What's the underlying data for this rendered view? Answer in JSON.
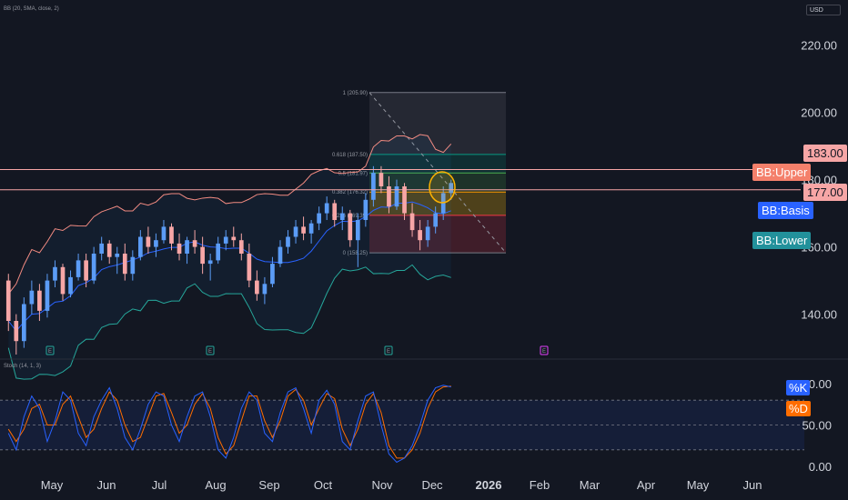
{
  "header": {
    "indicator_label": "BB (20, SMA, close, 2)",
    "currency": "USD"
  },
  "price_axis": {
    "ticks": [
      "220.00",
      "200.00",
      "180.00",
      "160.00",
      "140.00"
    ]
  },
  "price_labels": {
    "upper_line": "183.00",
    "lower_line": "177.00"
  },
  "bb_labels": {
    "upper": "BB:Upper",
    "basis": "BB:Basis",
    "lower": "BB:Lower"
  },
  "fib_labels": [
    "1 (205.90)",
    "0.618 (187.50)",
    "0.5 (181.97)",
    "0.382 (176.32)",
    "0.236 (169.39)",
    "0 (158.25)"
  ],
  "stoch": {
    "label": "Stoch (14, 1, 3)",
    "ticks": [
      "100.00",
      "50.00",
      "0.00"
    ],
    "k_label": "%K",
    "d_label": "%D"
  },
  "time_axis": [
    "May",
    "Jun",
    "Jul",
    "Aug",
    "Sep",
    "Oct",
    "Nov",
    "Dec",
    "2026",
    "Feb",
    "Mar",
    "Apr",
    "May",
    "Jun"
  ],
  "event_markers": [
    "E",
    "E",
    "E",
    "E"
  ],
  "colors": {
    "background": "#131722",
    "up": "#5b9cf6",
    "down": "#f7a6a6",
    "bb_upper": "#f28b82",
    "bb_basis": "#2962ff",
    "bb_lower": "#26a69a",
    "k": "#2962ff",
    "d": "#ff6d00",
    "hline": "#f7a6a6"
  },
  "chart_data": {
    "type": "candlestick",
    "price_range": [
      128,
      228
    ],
    "ohlc": [
      [
        150,
        152,
        135,
        138
      ],
      [
        138,
        140,
        128,
        132
      ],
      [
        132,
        145,
        130,
        143
      ],
      [
        143,
        150,
        140,
        147
      ],
      [
        147,
        149,
        138,
        141
      ],
      [
        141,
        152,
        139,
        150
      ],
      [
        150,
        156,
        148,
        154
      ],
      [
        154,
        155,
        144,
        146
      ],
      [
        146,
        153,
        145,
        151
      ],
      [
        151,
        158,
        150,
        156
      ],
      [
        156,
        158,
        148,
        150
      ],
      [
        150,
        160,
        149,
        158
      ],
      [
        158,
        163,
        156,
        161
      ],
      [
        161,
        162,
        155,
        157
      ],
      [
        157,
        160,
        152,
        158
      ],
      [
        158,
        161,
        150,
        152
      ],
      [
        152,
        159,
        150,
        157
      ],
      [
        157,
        165,
        156,
        163
      ],
      [
        163,
        166,
        158,
        160
      ],
      [
        160,
        164,
        157,
        162
      ],
      [
        162,
        168,
        161,
        166
      ],
      [
        166,
        167,
        159,
        161
      ],
      [
        161,
        164,
        156,
        158
      ],
      [
        158,
        163,
        155,
        162
      ],
      [
        162,
        165,
        158,
        160
      ],
      [
        160,
        163,
        152,
        155
      ],
      [
        155,
        158,
        150,
        156
      ],
      [
        156,
        163,
        155,
        161
      ],
      [
        161,
        165,
        159,
        163
      ],
      [
        163,
        166,
        160,
        162
      ],
      [
        162,
        164,
        156,
        158
      ],
      [
        158,
        161,
        148,
        150
      ],
      [
        150,
        153,
        144,
        146
      ],
      [
        146,
        151,
        143,
        149
      ],
      [
        149,
        157,
        148,
        155
      ],
      [
        155,
        162,
        154,
        160
      ],
      [
        160,
        165,
        158,
        163
      ],
      [
        163,
        168,
        161,
        166
      ],
      [
        166,
        169,
        162,
        164
      ],
      [
        164,
        168,
        161,
        167
      ],
      [
        167,
        172,
        165,
        170
      ],
      [
        170,
        175,
        168,
        173
      ],
      [
        173,
        174,
        166,
        168
      ],
      [
        168,
        172,
        165,
        170
      ],
      [
        170,
        171,
        160,
        162
      ],
      [
        162,
        170,
        154,
        168
      ],
      [
        168,
        176,
        166,
        174
      ],
      [
        174,
        184,
        172,
        182
      ],
      [
        182,
        184,
        176,
        178
      ],
      [
        178,
        181,
        170,
        172
      ],
      [
        172,
        180,
        171,
        178
      ],
      [
        178,
        179,
        168,
        170
      ],
      [
        170,
        173,
        163,
        165
      ],
      [
        165,
        168,
        159,
        162
      ],
      [
        162,
        168,
        160,
        166
      ],
      [
        166,
        172,
        164,
        170
      ],
      [
        170,
        178,
        168,
        176
      ],
      [
        176,
        180,
        174,
        179
      ]
    ],
    "bollinger": {
      "upper": [],
      "basis": [],
      "lower": []
    },
    "horizontal_lines": [
      183,
      177
    ],
    "fibonacci": {
      "levels": [
        1,
        0.618,
        0.5,
        0.382,
        0.236,
        0
      ],
      "prices": [
        205.9,
        187.5,
        181.97,
        176.32,
        169.39,
        158.25
      ]
    },
    "stochastic": {
      "k": [
        40,
        20,
        60,
        85,
        70,
        30,
        55,
        90,
        80,
        40,
        25,
        60,
        80,
        95,
        70,
        35,
        20,
        45,
        75,
        90,
        85,
        50,
        30,
        60,
        85,
        90,
        60,
        20,
        10,
        35,
        70,
        90,
        80,
        40,
        30,
        65,
        90,
        95,
        70,
        40,
        80,
        92,
        75,
        30,
        20,
        55,
        85,
        90,
        50,
        15,
        5,
        10,
        25,
        50,
        80,
        95,
        98,
        96
      ],
      "d": [
        45,
        30,
        45,
        70,
        75,
        50,
        50,
        75,
        85,
        60,
        35,
        45,
        70,
        90,
        80,
        50,
        30,
        35,
        60,
        85,
        88,
        65,
        40,
        50,
        75,
        88,
        70,
        35,
        15,
        25,
        55,
        85,
        85,
        55,
        35,
        55,
        85,
        93,
        80,
        50,
        70,
        88,
        82,
        45,
        25,
        45,
        75,
        88,
        65,
        25,
        10,
        10,
        20,
        40,
        70,
        90,
        96,
        97
      ]
    }
  }
}
